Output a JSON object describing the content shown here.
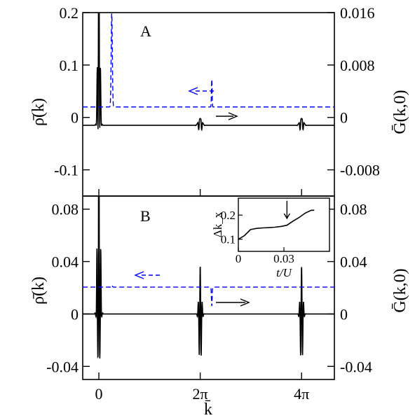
{
  "chart_data": [
    {
      "panel": "A",
      "type": "line",
      "xlabel": "k̄",
      "ylabel_left": "ρ̄(k)",
      "ylabel_right": "Ḡ(k,0)",
      "xlim": [
        -1.0,
        14.6
      ],
      "ylim_left": [
        -0.15,
        0.2
      ],
      "ylim_right": [
        -0.012,
        0.016
      ],
      "yticks_left": [
        "-0.1",
        "0",
        "0.1",
        "0.2"
      ],
      "yticks_right": [
        "-0.008",
        "0",
        "0.008",
        "0.016"
      ],
      "series": [
        {
          "axis": "left",
          "style": "solid",
          "color": "#000000",
          "baseline": -0.015,
          "peaks": [
            {
              "x": 0.0,
              "height": 0.4,
              "width": 0.07
            },
            {
              "x": 6.283,
              "height": 0.01,
              "width": 0.12
            },
            {
              "x": 12.566,
              "height": 0.01,
              "width": 0.12
            }
          ]
        },
        {
          "axis": "right",
          "style": "dashed",
          "color": "#0000ff",
          "baseline": 0.0016,
          "peaks": [
            {
              "x": 0.8,
              "height": 0.016,
              "width": 0.05
            },
            {
              "x": 7.0,
              "height": 0.0058,
              "width": 0.03
            }
          ]
        }
      ]
    },
    {
      "panel": "B",
      "type": "line",
      "xlim": [
        -1.0,
        14.6
      ],
      "ylim_left": [
        -0.05,
        0.09
      ],
      "ylim_right": [
        -0.05,
        0.09
      ],
      "xticks": [
        {
          "value": 0,
          "label": "0"
        },
        {
          "value": 6.283,
          "label": "2π"
        },
        {
          "value": 12.566,
          "label": "4π"
        }
      ],
      "yticks_left": [
        "-0.04",
        "0",
        "0.04",
        "0.08"
      ],
      "yticks_right": [
        "-0.04",
        "0",
        "0.04",
        "0.08"
      ],
      "series": [
        {
          "axis": "left",
          "style": "solid",
          "color": "#000000",
          "baseline": 0.0,
          "peaks": [
            {
              "x": 0.0,
              "height": 0.2,
              "depth": -0.048,
              "width": 0.08
            },
            {
              "x": 6.283,
              "height": 0.037,
              "depth": -0.045,
              "width": 0.08
            },
            {
              "x": 12.566,
              "height": 0.037,
              "depth": -0.045,
              "width": 0.08
            }
          ]
        },
        {
          "axis": "right",
          "style": "dashed",
          "color": "#0000ff",
          "baseline": 0.0205,
          "peaks": [
            {
              "x": 0.8,
              "height": 0.022,
              "width": 0.05
            },
            {
              "x": 7.0,
              "height": 0.006,
              "width": 0.03
            }
          ]
        }
      ]
    },
    {
      "panel": "inset",
      "type": "line",
      "xlabel": "t/U",
      "ylabel": "Δk_x",
      "xlim": [
        0,
        0.06
      ],
      "ylim": [
        0.05,
        0.27
      ],
      "xticks": [
        "0",
        "0.03"
      ],
      "yticks": [
        "0.1",
        "0.2"
      ],
      "series": [
        {
          "name": "",
          "x": [
            0.0,
            0.004,
            0.008,
            0.012,
            0.016,
            0.02,
            0.024,
            0.028,
            0.032,
            0.036,
            0.04,
            0.044,
            0.048,
            0.05
          ],
          "y": [
            0.1,
            0.115,
            0.14,
            0.145,
            0.147,
            0.148,
            0.15,
            0.153,
            0.158,
            0.175,
            0.19,
            0.208,
            0.22,
            0.22
          ]
        }
      ],
      "arrow_at_x": 0.032
    }
  ]
}
